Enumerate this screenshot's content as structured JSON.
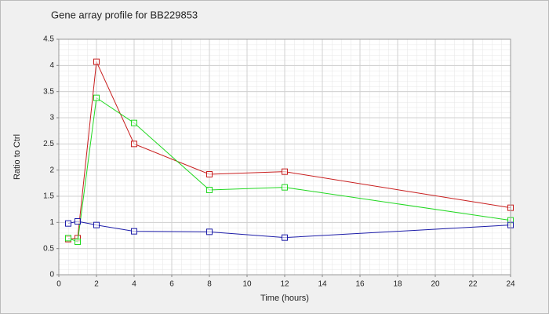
{
  "chart_data": {
    "type": "line",
    "title": "Gene array profile for BB229853",
    "x_label": "Time (hours)",
    "y_label": "Ratio to Ctrl",
    "x": [
      0.5,
      1,
      2,
      4,
      8,
      12,
      24
    ],
    "series": [
      {
        "color": "#c81e1e",
        "values": [
          0.68,
          0.7,
          4.07,
          2.5,
          1.92,
          1.97,
          1.28
        ]
      },
      {
        "color": "#22d822",
        "values": [
          0.7,
          0.63,
          3.38,
          2.9,
          1.62,
          1.67,
          1.04
        ]
      },
      {
        "color": "#1c1ca8",
        "values": [
          0.98,
          1.02,
          0.95,
          0.83,
          0.82,
          0.71,
          0.95
        ]
      }
    ],
    "xlim": [
      0,
      24
    ],
    "xticks": [
      0,
      2,
      4,
      6,
      8,
      10,
      12,
      14,
      16,
      18,
      20,
      22,
      24
    ],
    "ylim": [
      0,
      4.5
    ],
    "yticks": [
      0,
      0.5,
      1,
      1.5,
      2,
      2.5,
      3,
      3.5,
      4,
      4.5
    ],
    "grid": true
  }
}
